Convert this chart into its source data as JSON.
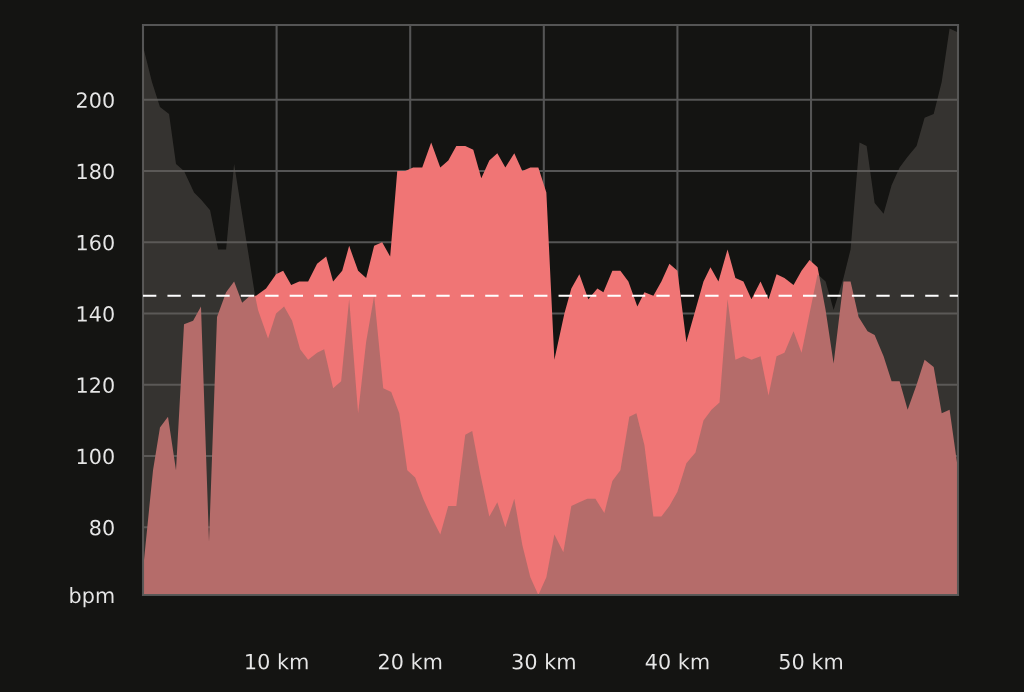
{
  "chart_data": {
    "type": "area",
    "xlim": [
      0,
      61
    ],
    "ylim": [
      61,
      221
    ],
    "xticks": [
      {
        "value": 10,
        "label": "10 km"
      },
      {
        "value": 20,
        "label": "20 km"
      },
      {
        "value": 30,
        "label": "30 km"
      },
      {
        "value": 40,
        "label": "40 km"
      },
      {
        "value": 50,
        "label": "50 km"
      }
    ],
    "yticks": [
      {
        "value": 61,
        "label": "bpm"
      },
      80,
      100,
      120,
      140,
      160,
      180,
      200
    ],
    "grid": true,
    "ref_lines": [
      {
        "axis": "y",
        "value": 145,
        "color": "#ffffff",
        "line_style": "dashed"
      }
    ],
    "series": [
      {
        "color": "#f07575",
        "x": [
          0,
          0.75,
          1.27,
          1.87,
          2.47,
          3.07,
          3.75,
          4.34,
          4.94,
          5.54,
          6.22,
          6.82,
          7.42,
          8.01,
          8.46,
          9.21,
          9.96,
          10.49,
          11.09,
          11.69,
          12.36,
          13.03,
          13.71,
          14.23,
          14.91,
          15.43,
          16.1,
          16.7,
          17.3,
          17.9,
          18.5,
          19.03,
          19.63,
          20.22,
          20.9,
          21.57,
          22.25,
          22.85,
          23.45,
          24.12,
          24.72,
          25.32,
          25.92,
          26.52,
          27.12,
          27.79,
          28.39,
          28.99,
          29.59,
          30.19,
          30.79,
          31.54,
          32.06,
          32.66,
          33.33,
          34.01,
          34.46,
          35.13,
          35.73,
          36.33,
          37.0,
          37.53,
          38.2,
          38.8,
          39.4,
          40.0,
          40.67,
          41.95,
          42.47,
          43.07,
          43.75,
          44.34,
          44.94,
          45.54,
          46.22,
          46.82,
          47.42,
          48.01,
          48.69,
          49.29,
          49.89,
          50.49,
          51.09,
          51.69,
          52.43,
          52.96,
          53.56,
          54.23,
          54.76,
          55.43,
          56.03,
          56.63,
          57.23,
          57.9,
          58.5,
          59.18,
          59.78,
          60.37,
          60.97
        ],
        "values": [
          68,
          96,
          108,
          111,
          96,
          137,
          138,
          142,
          76,
          139,
          146,
          149,
          143,
          145,
          145,
          147,
          151,
          152,
          148,
          149,
          149,
          154,
          156,
          149,
          152,
          159,
          152,
          150,
          159,
          160,
          156,
          180,
          180,
          181,
          181,
          188,
          181,
          183,
          187,
          187,
          186,
          178,
          183,
          185,
          181,
          185,
          180,
          181,
          181,
          174,
          127,
          140,
          147,
          151,
          144,
          147,
          146,
          152,
          152,
          149,
          142,
          146,
          145,
          149,
          154,
          152,
          132,
          149,
          153,
          149,
          158,
          150,
          149,
          144,
          149,
          144,
          151,
          150,
          148,
          152,
          155,
          153,
          141,
          126,
          149,
          149,
          139,
          135,
          134,
          128,
          121,
          121,
          113,
          120,
          127,
          125,
          112,
          113,
          97
        ]
      },
      {
        "color": "#645f5b",
        "x": [
          0,
          0.67,
          1.27,
          1.95,
          2.47,
          3.07,
          3.82,
          4.34,
          5.02,
          5.62,
          6.22,
          6.82,
          8.39,
          8.61,
          9.36,
          9.96,
          10.56,
          11.16,
          11.76,
          12.36,
          13.03,
          13.56,
          14.23,
          14.83,
          15.43,
          16.1,
          16.7,
          17.3,
          17.98,
          18.58,
          19.18,
          19.78,
          20.37,
          20.97,
          21.57,
          22.25,
          22.85,
          23.45,
          24.12,
          24.64,
          25.24,
          25.92,
          26.52,
          27.12,
          27.79,
          28.39,
          28.99,
          29.59,
          30.19,
          30.79,
          31.46,
          32.06,
          32.66,
          33.26,
          33.86,
          34.53,
          35.13,
          35.73,
          36.4,
          36.93,
          37.53,
          38.2,
          38.8,
          39.4,
          40.0,
          40.67,
          41.35,
          41.95,
          42.55,
          43.15,
          43.75,
          44.34,
          44.94,
          45.54,
          46.22,
          46.82,
          47.42,
          48.01,
          48.69,
          49.29,
          49.89,
          50.49,
          51.09,
          51.69,
          52.43,
          52.96,
          53.63,
          54.16,
          54.76,
          55.43,
          56.03,
          56.63,
          57.23,
          57.9,
          58.5,
          59.18,
          59.78,
          60.37,
          60.97
        ],
        "values": [
          215,
          205,
          198,
          196,
          182,
          180,
          174,
          172,
          169,
          158,
          158,
          182,
          145,
          141,
          133,
          140,
          142,
          138,
          130,
          127,
          129,
          130,
          119,
          121,
          144,
          112,
          132,
          145,
          119,
          118,
          112,
          96,
          94,
          88,
          83,
          78,
          86,
          86,
          106,
          107,
          95,
          83,
          87,
          80,
          88,
          75,
          66,
          61,
          66,
          78,
          73,
          86,
          87,
          88,
          88,
          84,
          93,
          96,
          111,
          112,
          103,
          83,
          83,
          86,
          90,
          98,
          101,
          110,
          113,
          115,
          144,
          127,
          128,
          127,
          128,
          117,
          128,
          129,
          135,
          129,
          140,
          151,
          149,
          141,
          150,
          158,
          188,
          187,
          171,
          168,
          176,
          181,
          184,
          187,
          195,
          196,
          205,
          220,
          219
        ]
      }
    ]
  }
}
